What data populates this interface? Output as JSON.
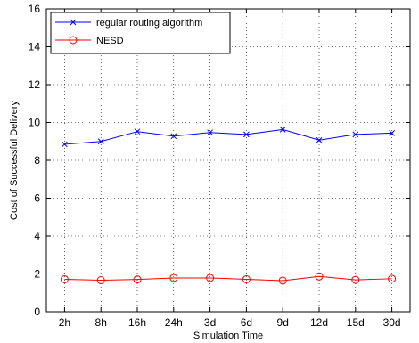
{
  "chart_data": {
    "type": "line",
    "categories": [
      "2h",
      "8h",
      "16h",
      "24h",
      "3d",
      "6d",
      "9d",
      "12d",
      "15d",
      "30d"
    ],
    "series": [
      {
        "name": "regular routing algorithm",
        "values": [
          8.85,
          9.0,
          9.52,
          9.28,
          9.47,
          9.37,
          9.63,
          9.07,
          9.37,
          9.44
        ],
        "color": "#0000ff",
        "marker": "x"
      },
      {
        "name": "NESD",
        "values": [
          1.72,
          1.67,
          1.71,
          1.79,
          1.79,
          1.72,
          1.65,
          1.87,
          1.69,
          1.75
        ],
        "color": "#ff0000",
        "marker": "o"
      }
    ],
    "xlabel": "Simulation Time",
    "ylabel": "Cost of Successful Delivery",
    "ylim": [
      0,
      16
    ],
    "yticks": [
      0,
      2,
      4,
      6,
      8,
      10,
      12,
      14,
      16
    ],
    "grid": true,
    "legend": "top-left"
  }
}
